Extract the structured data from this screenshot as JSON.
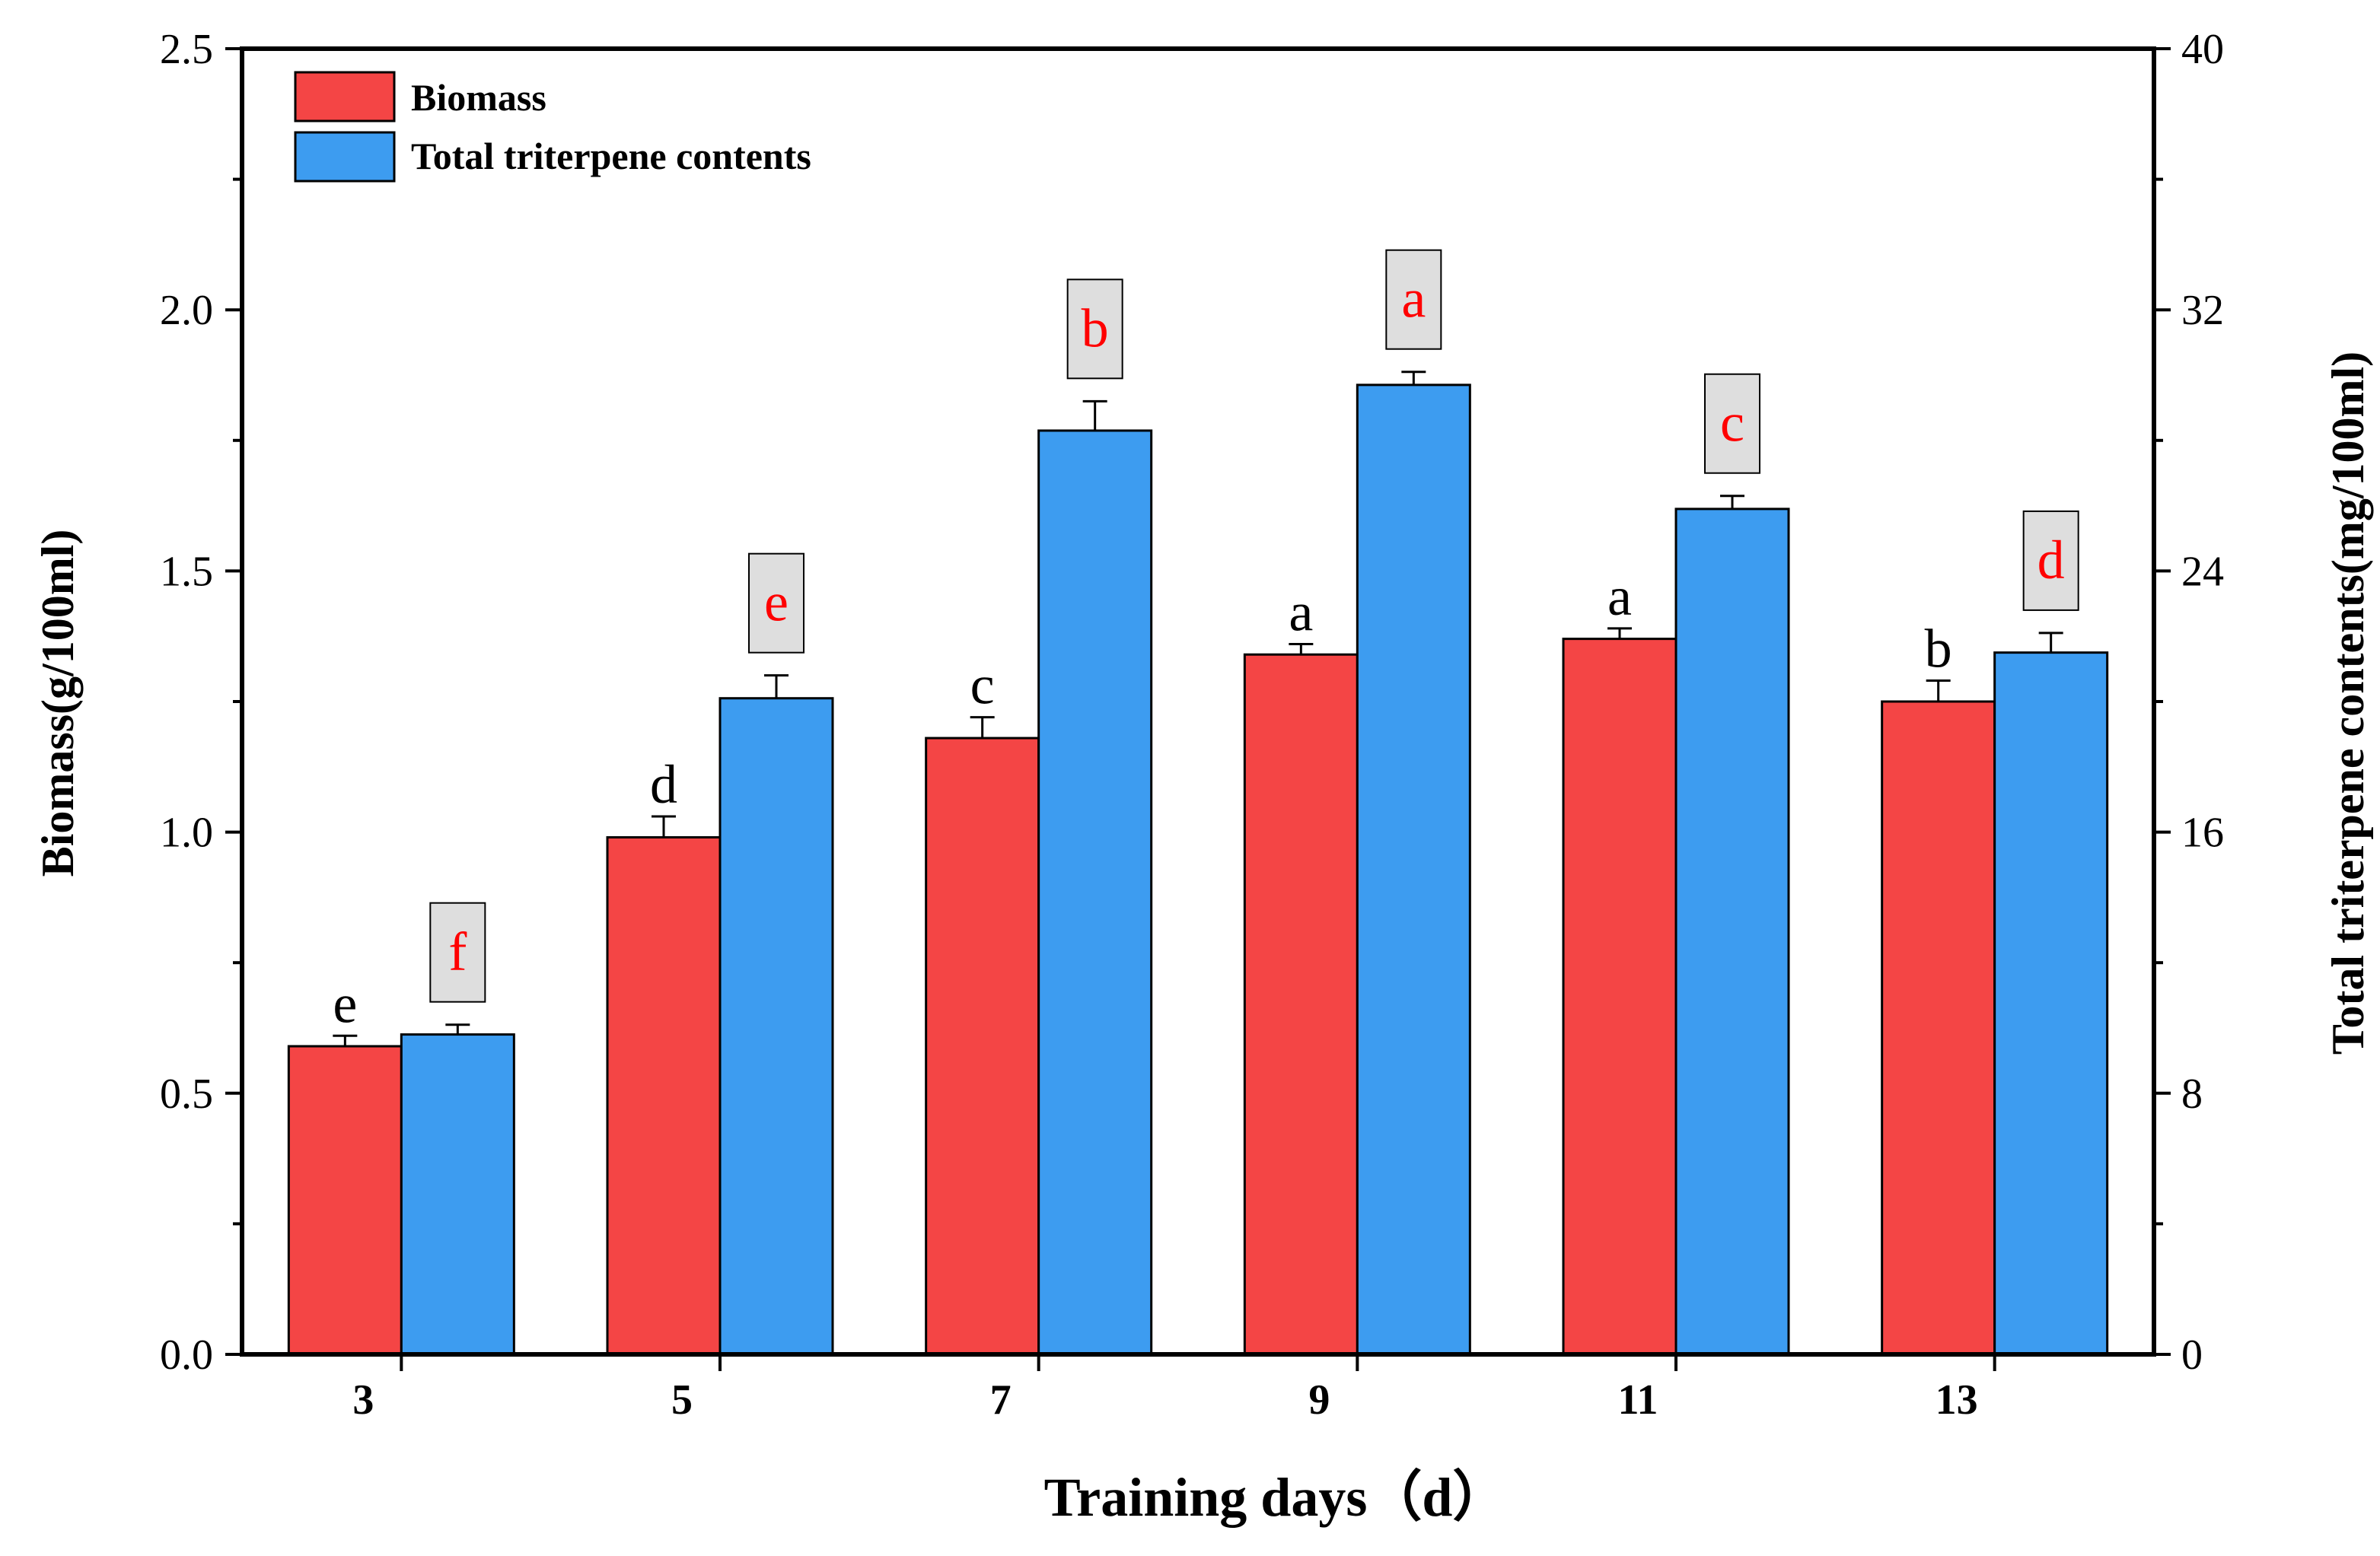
{
  "colors": {
    "biomass": "#f44545",
    "triterpene": "#3d9cf0",
    "sig_red": "#ff0000",
    "sig_box": "#dedede"
  },
  "chart_data": {
    "type": "bar",
    "categories": [
      "3",
      "5",
      "7",
      "9",
      "11",
      "13"
    ],
    "series": [
      {
        "name": "Biomass",
        "axis": "left",
        "values": [
          0.59,
          0.99,
          1.18,
          1.34,
          1.37,
          1.25
        ],
        "errors": [
          0.02,
          0.04,
          0.04,
          0.02,
          0.02,
          0.04
        ],
        "significance": [
          "e",
          "d",
          "c",
          "a",
          "a",
          "b"
        ]
      },
      {
        "name": "Total triterpene contents",
        "axis": "right",
        "values": [
          9.8,
          20.1,
          28.3,
          29.7,
          25.9,
          21.5
        ],
        "errors": [
          0.3,
          0.7,
          0.9,
          0.4,
          0.4,
          0.6
        ],
        "significance": [
          "f",
          "e",
          "b",
          "a",
          "c",
          "d"
        ]
      }
    ],
    "xlabel": "Training days（d）",
    "ylabel": "Biomass(g/100ml)",
    "ylabel_right": "Total triterpene contents(mg/100ml)",
    "ylim": [
      0,
      2.5
    ],
    "ylim_right": [
      0,
      40
    ],
    "yticks": [
      "0.0",
      "0.5",
      "1.0",
      "1.5",
      "2.0",
      "2.5"
    ],
    "yticks_right": [
      "0",
      "8",
      "16",
      "24",
      "32",
      "40"
    ],
    "legend_position": "top-left",
    "grid": false
  }
}
